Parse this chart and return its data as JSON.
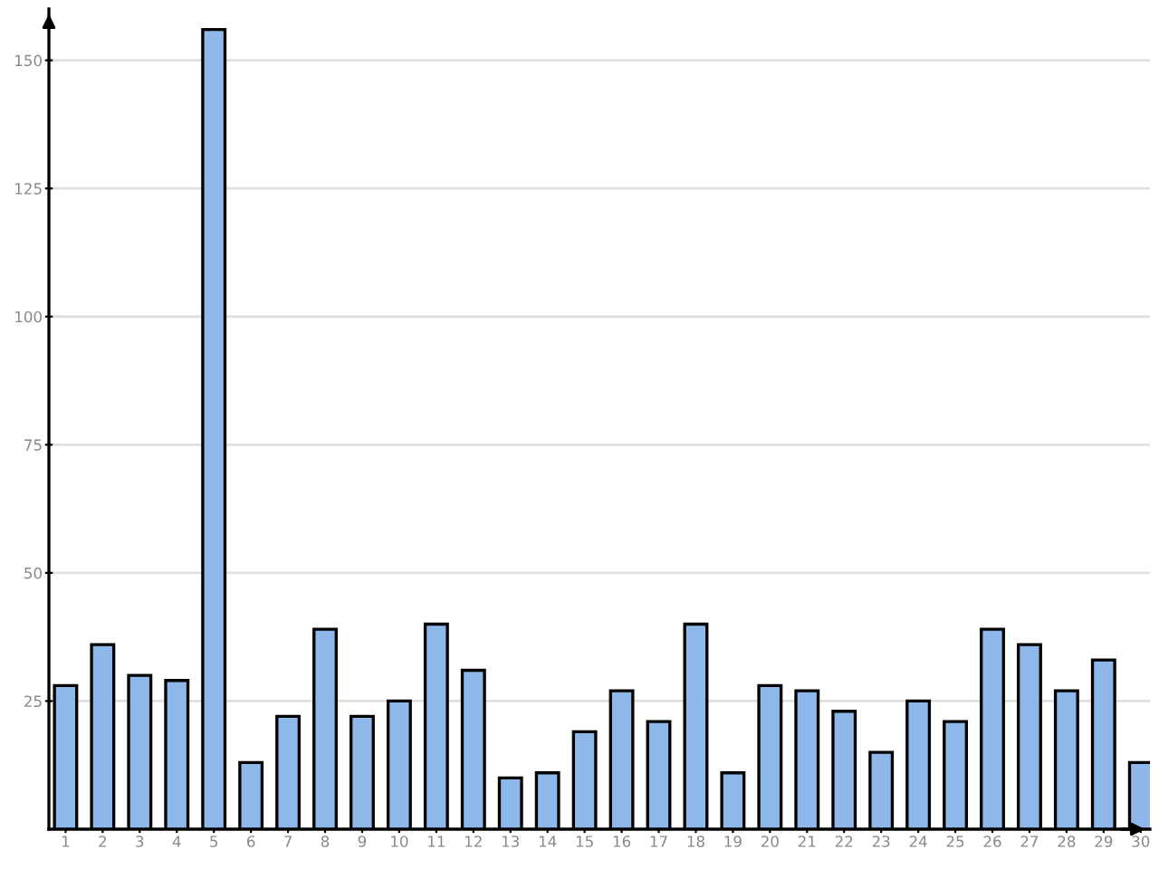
{
  "chart_data": {
    "type": "bar",
    "categories": [
      "1",
      "2",
      "3",
      "4",
      "5",
      "6",
      "7",
      "8",
      "9",
      "10",
      "11",
      "12",
      "13",
      "14",
      "15",
      "16",
      "17",
      "18",
      "19",
      "20",
      "21",
      "22",
      "23",
      "24",
      "25",
      "26",
      "27",
      "28",
      "29",
      "30"
    ],
    "values": [
      28,
      36,
      30,
      29,
      156,
      13,
      22,
      39,
      22,
      25,
      40,
      31,
      10,
      11,
      19,
      27,
      21,
      40,
      11,
      28,
      27,
      23,
      15,
      25,
      21,
      39,
      36,
      27,
      33,
      13
    ],
    "color": "#8fb8ea",
    "ylim": [
      0,
      160
    ],
    "yticks": [
      25,
      50,
      75,
      100,
      125,
      150
    ],
    "grid": "y",
    "legend": false
  }
}
